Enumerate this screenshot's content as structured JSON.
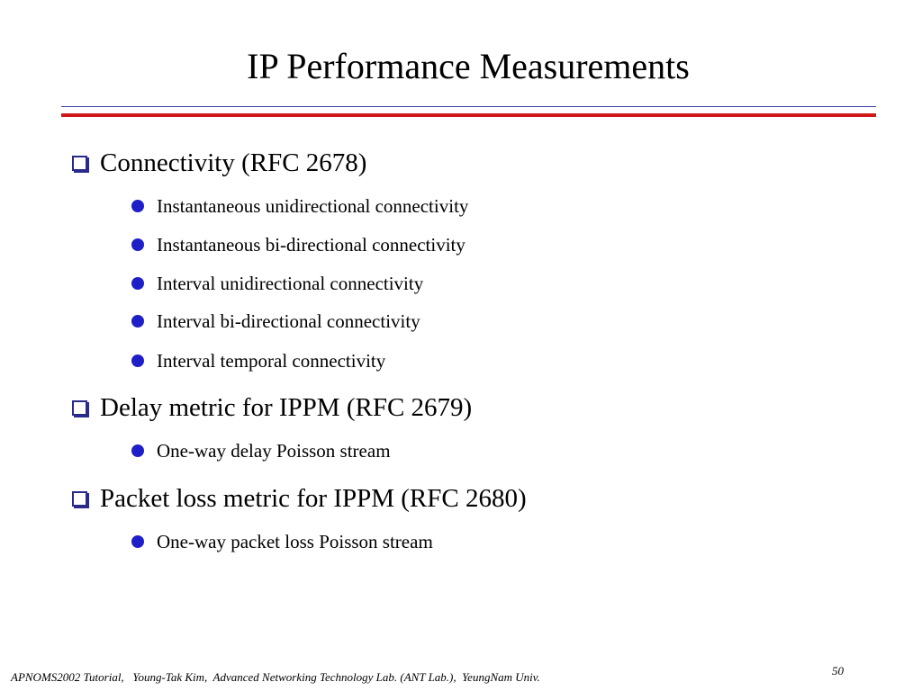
{
  "slide": {
    "title": "IP Performance Measurements",
    "colors": {
      "rule_blue": "#3b3bb0",
      "rule_red": "#d01818",
      "bullet_box": "#2a2a8a",
      "bullet_dot": "#1f1fc8"
    },
    "sections": [
      {
        "heading": "Connectivity (RFC 2678)",
        "items": [
          "Instantaneous unidirectional connectivity",
          "Instantaneous bi-directional connectivity",
          "Interval unidirectional connectivity",
          "Interval bi-directional connectivity",
          "Interval temporal connectivity"
        ]
      },
      {
        "heading": "Delay metric for IPPM (RFC 2679)",
        "items": [
          "One-way delay Poisson stream"
        ]
      },
      {
        "heading": "Packet loss metric for IPPM (RFC 2680)",
        "items": [
          "One-way packet loss Poisson stream"
        ]
      }
    ]
  },
  "footer": {
    "text": "APNOMS2002 Tutorial,   Young-Tak Kim,  Advanced Networking Technology Lab. (ANT Lab.),  YeungNam Univ.",
    "page_number": "50"
  }
}
